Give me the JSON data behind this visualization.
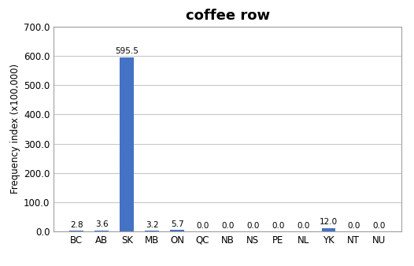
{
  "title": "coffee row",
  "categories": [
    "BC",
    "AB",
    "SK",
    "MB",
    "ON",
    "QC",
    "NB",
    "NS",
    "PE",
    "NL",
    "YK",
    "NT",
    "NU"
  ],
  "values": [
    2.8,
    3.6,
    595.5,
    3.2,
    5.7,
    0.0,
    0.0,
    0.0,
    0.0,
    0.0,
    12.0,
    0.0,
    0.0
  ],
  "bar_color": "#4472C4",
  "ylabel": "Frequency index (x100,000)",
  "ylim": [
    0,
    700
  ],
  "yticks": [
    0,
    100,
    200,
    300,
    400,
    500,
    600,
    700
  ],
  "title_fontsize": 13,
  "label_fontsize": 8.5,
  "tick_fontsize": 8.5,
  "annotation_fontsize": 7.5,
  "background_color": "#ffffff",
  "grid_color": "#c8c8c8",
  "spine_color": "#a0a0a0"
}
